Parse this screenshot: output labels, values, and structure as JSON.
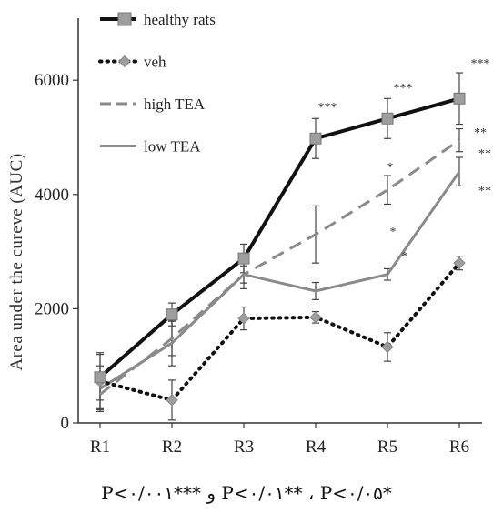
{
  "chart_data": {
    "type": "line",
    "ylabel": "Area under the cureve (AUC)",
    "xlabel": "",
    "categories": [
      "R1",
      "R2",
      "R3",
      "R4",
      "R5",
      "R6"
    ],
    "yticks": [
      "0",
      "2000",
      "4000",
      "6000"
    ],
    "ylim": [
      0,
      7000
    ],
    "legend_position": "top-left",
    "series": [
      {
        "name": "healthy rats",
        "values": [
          800,
          1900,
          2880,
          4980,
          5330,
          5680
        ],
        "errors": [
          400,
          200,
          250,
          350,
          350,
          450
        ],
        "color": "#111111",
        "marker": "square",
        "line": "solid-thick"
      },
      {
        "name": "veh",
        "values": [
          730,
          400,
          1830,
          1850,
          1330,
          2800
        ],
        "errors": [
          500,
          350,
          200,
          100,
          250,
          120
        ],
        "color": "#111111",
        "marker": "diamond",
        "line": "dotted"
      },
      {
        "name": "high TEA",
        "values": [
          500,
          1480,
          2600,
          3300,
          4080,
          4950
        ],
        "errors": [
          250,
          300,
          250,
          500,
          250,
          200
        ],
        "color": "#8a8a8a",
        "marker": "none",
        "line": "dashed"
      },
      {
        "name": "low TEA",
        "values": [
          600,
          1400,
          2600,
          2310,
          2600,
          4400
        ],
        "errors": [
          400,
          400,
          150,
          150,
          100,
          250
        ],
        "color": "#8a8a8a",
        "marker": "none",
        "line": "solid"
      }
    ],
    "annotations": [
      {
        "x": "R4",
        "text": "***"
      },
      {
        "x": "R5",
        "text": "***"
      },
      {
        "x": "R5",
        "text": "*"
      },
      {
        "x": "R5",
        "text": "*"
      },
      {
        "x": "R5",
        "text": "*"
      },
      {
        "x": "R6",
        "text": "***"
      },
      {
        "x": "R6",
        "text": "**"
      },
      {
        "x": "R6",
        "text": "**"
      },
      {
        "x": "R6",
        "text": "**"
      }
    ]
  },
  "footnote": "P<۰/۰۰۱*** و P<۰/۰۱** ، P<۰/۰۵*"
}
